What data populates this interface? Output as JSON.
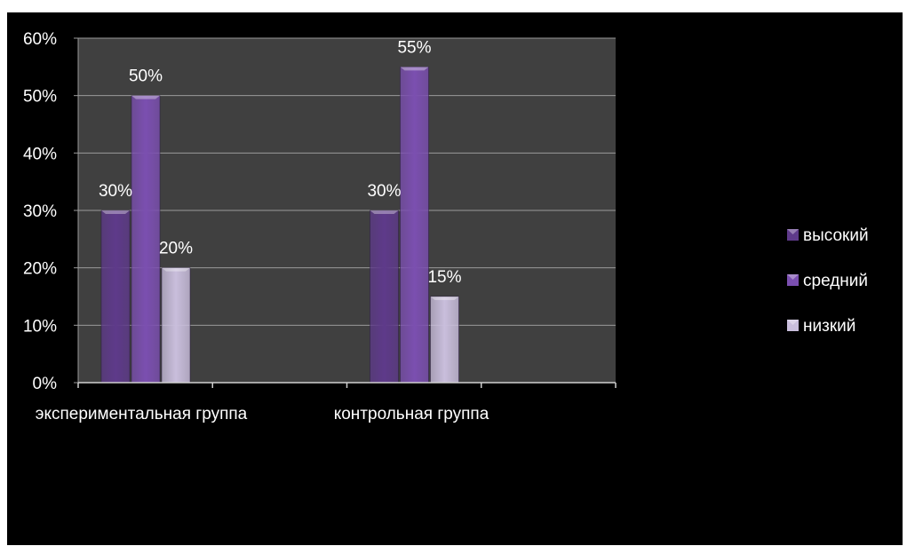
{
  "chart_data": {
    "type": "bar",
    "title": "",
    "xlabel": "",
    "ylabel": "",
    "categories": [
      "экспериментальная группа",
      "контрольная группа"
    ],
    "series": [
      {
        "name": "высокий",
        "values": [
          30,
          30
        ],
        "labels": [
          "30%",
          "30%"
        ],
        "color": "#5e3a8a"
      },
      {
        "name": "средний",
        "values": [
          50,
          55
        ],
        "labels": [
          "50%",
          "55%"
        ],
        "color": "#7b4fb0"
      },
      {
        "name": "низкий",
        "values": [
          20,
          15
        ],
        "labels": [
          "20%",
          "15%"
        ],
        "color": "#c9bedc"
      }
    ],
    "ylim": [
      0,
      60
    ],
    "yticks": [
      0,
      10,
      20,
      30,
      40,
      50,
      60
    ],
    "ytick_labels": [
      "0%",
      "10%",
      "20%",
      "30%",
      "40%",
      "50%",
      "60%"
    ],
    "grid": true,
    "legend_position": "right",
    "colors": {
      "background": "#000000",
      "plot_area": "#404040",
      "gridline": "#9a9a9a",
      "text": "#ffffff"
    }
  }
}
